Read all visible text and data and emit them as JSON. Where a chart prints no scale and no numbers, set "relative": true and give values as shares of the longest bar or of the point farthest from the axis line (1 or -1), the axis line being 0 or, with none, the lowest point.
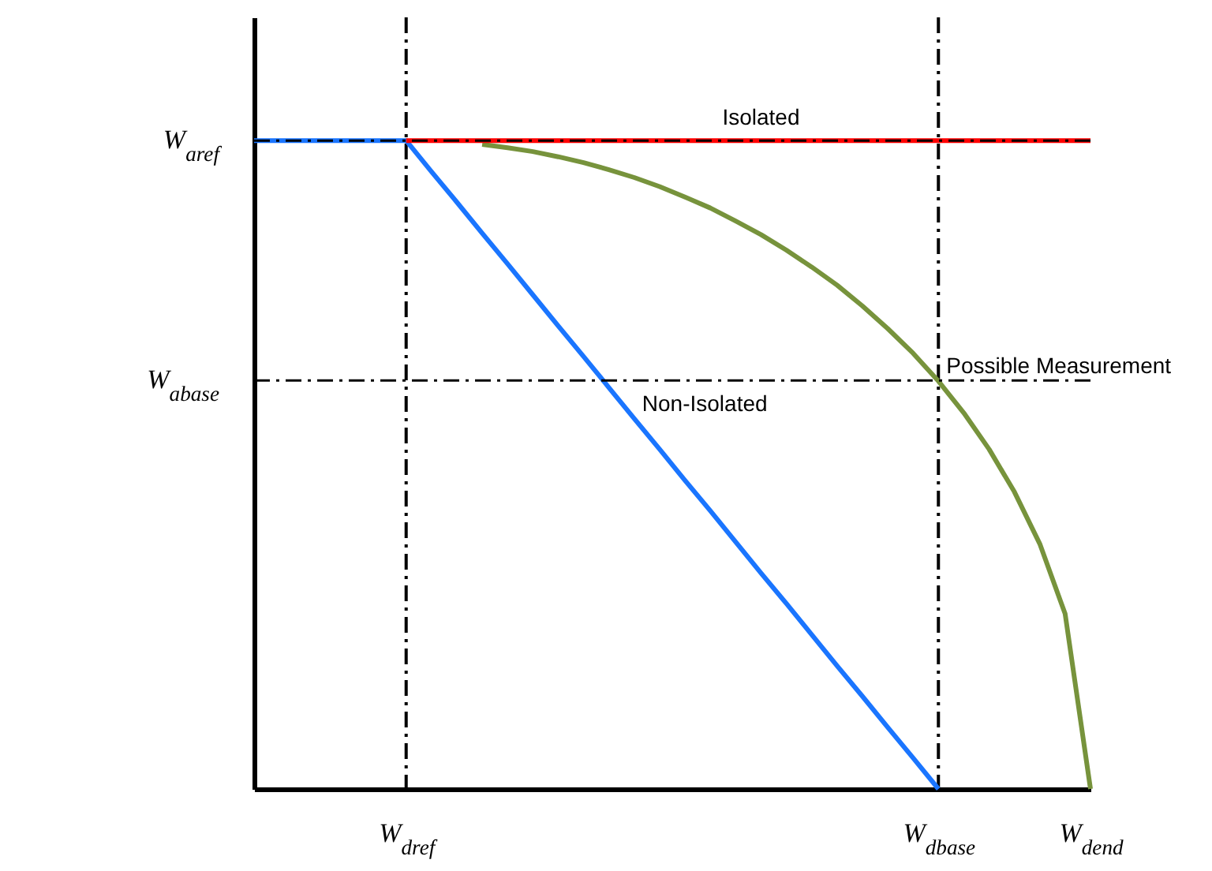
{
  "chart_data": {
    "type": "line",
    "relative": true,
    "categories": [
      null,
      null,
      null,
      null,
      null,
      null,
      "W$_{d}$$_{ref}$",
      null,
      null,
      null,
      null,
      null,
      null,
      null,
      null,
      null,
      null,
      null,
      null,
      null,
      null,
      null,
      null,
      null,
      null,
      null,
      null,
      "W$_{d}$$_{base}$",
      null,
      null,
      null,
      null,
      null,
      "W$_{d}$$_{end}$"
    ],
    "ref_lines": [
      {
        "axis": "x",
        "value": "W$_{d}$$_{ref}$",
        "color": "#000000",
        "line_style": "dashed"
      },
      {
        "axis": "x",
        "value": "W$_{d}$$_{base}$",
        "color": "#000000",
        "line_style": "dashed"
      },
      {
        "axis": "y",
        "value": 0.63,
        "label": "W$_{a}$$_{base}$",
        "color": "#000000",
        "line_style": "dashed"
      },
      {
        "axis": "y",
        "value": 1,
        "label": "W$_{a}$$_{ref}$",
        "color": "#000000",
        "line_style": "dashed"
      }
    ],
    "series": [
      {
        "name": "Non-Isolated",
        "color": "#1a75ff",
        "values": [
          1,
          1,
          1,
          1,
          1,
          1,
          1,
          0.952,
          0.905,
          0.857,
          0.81,
          0.762,
          0.714,
          0.667,
          0.619,
          0.571,
          0.524,
          0.476,
          0.429,
          0.381,
          0.333,
          0.286,
          0.238,
          0.19,
          0.143,
          0.095,
          0.048,
          0,
          null,
          null,
          null,
          null,
          null,
          null
        ]
      },
      {
        "name": "Possible Measurement",
        "color": "#77933c",
        "values": [
          null,
          null,
          null,
          null,
          null,
          null,
          null,
          null,
          null,
          0.994,
          0.989,
          0.983,
          0.975,
          0.966,
          0.955,
          0.943,
          0.929,
          0.913,
          0.896,
          0.876,
          0.855,
          0.831,
          0.805,
          0.777,
          0.745,
          0.71,
          0.672,
          0.629,
          0.58,
          0.524,
          0.458,
          0.378,
          0.27,
          0
        ]
      },
      {
        "name": "Isolated",
        "color": "#ff0000",
        "values": [
          null,
          null,
          null,
          null,
          null,
          null,
          1,
          1,
          1,
          1,
          1,
          1,
          1,
          1,
          1,
          1,
          1,
          1,
          1,
          1,
          1,
          1,
          1,
          1,
          1,
          1,
          1,
          1,
          1,
          1,
          1,
          1,
          1,
          1
        ]
      }
    ]
  }
}
